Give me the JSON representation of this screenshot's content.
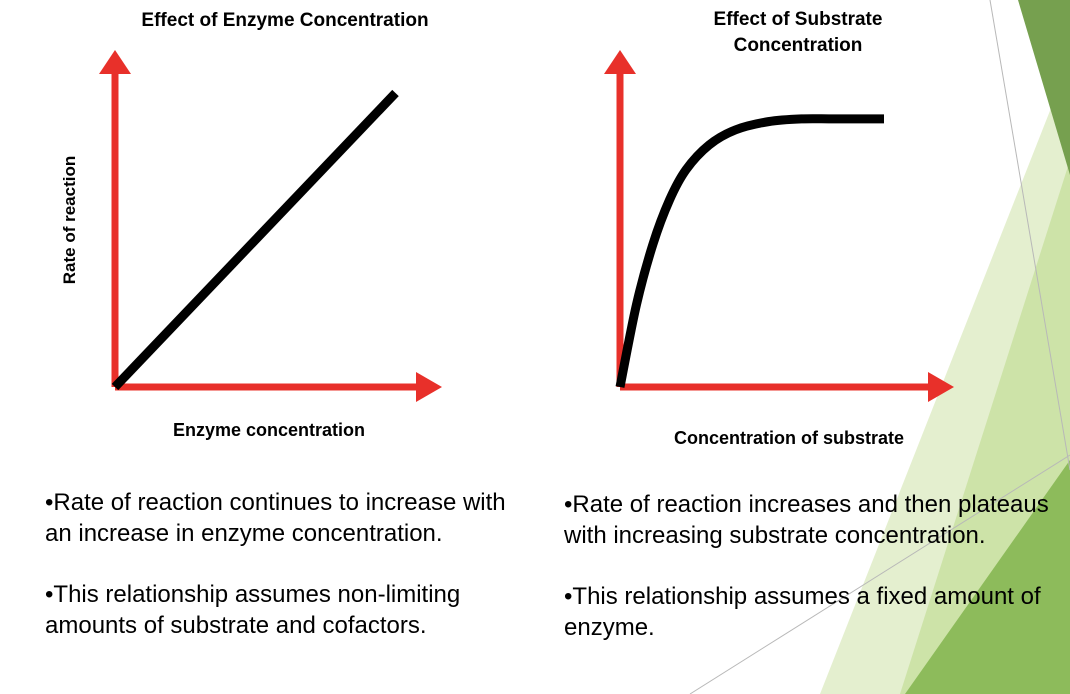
{
  "theme": {
    "axis_color": "#e8302a",
    "curve_color": "#000000",
    "accent_dark": "#76a04f",
    "accent_light": "#cde3a8",
    "accent_mid": "#8dbb5b"
  },
  "chart_data": [
    {
      "type": "line",
      "title": "Effect of Enzyme Concentration",
      "xlabel": "Enzyme concentration",
      "ylabel": "Rate of reaction",
      "xlim": [
        0,
        1
      ],
      "ylim": [
        0,
        1
      ],
      "series": [
        {
          "x": [
            0,
            0.85
          ],
          "y": [
            0,
            0.98
          ]
        }
      ]
    },
    {
      "type": "line",
      "title": "Effect of Substrate Concentration",
      "xlabel": "Concentration of substrate",
      "ylabel": "",
      "xlim": [
        0,
        1
      ],
      "ylim": [
        0,
        1
      ],
      "series": [
        {
          "x": [
            0,
            0.05,
            0.1,
            0.15,
            0.2,
            0.27,
            0.35,
            0.45,
            0.55,
            0.65,
            0.8
          ],
          "y": [
            0,
            0.3,
            0.52,
            0.68,
            0.79,
            0.88,
            0.935,
            0.965,
            0.975,
            0.975,
            0.975
          ]
        }
      ]
    }
  ],
  "left_text": {
    "bullet1": "Rate of reaction continues to increase with an increase in enzyme concentration.",
    "bullet2": "This relationship assumes non-limiting amounts of substrate and cofactors."
  },
  "right_text": {
    "bullet1": "Rate of reaction increases and then plateaus with increasing substrate concentration.",
    "bullet2": "This relationship assumes a fixed amount of enzyme."
  }
}
